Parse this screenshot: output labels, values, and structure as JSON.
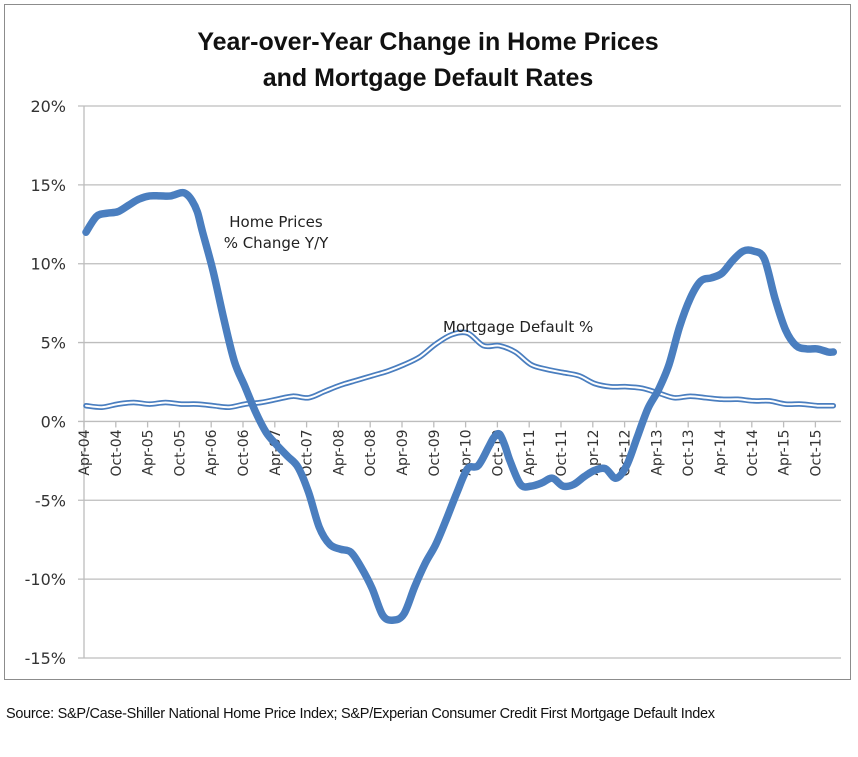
{
  "chart_data": {
    "type": "line",
    "title": [
      "Year-over-Year Change in Home Prices",
      "and Mortgage Default Rates"
    ],
    "xlabel": "",
    "ylabel": "",
    "ylim": [
      -15,
      20
    ],
    "ytick_values": [
      20,
      15,
      10,
      5,
      0,
      -5,
      -10,
      -15
    ],
    "ytick_labels": [
      "20%",
      "15%",
      "10%",
      "5%",
      "0%",
      "-5%",
      "-10%",
      "-15%"
    ],
    "xtick_labels": [
      "Apr-04",
      "Oct-04",
      "Apr-05",
      "Oct-05",
      "Apr-06",
      "Oct-06",
      "Apr-07",
      "Oct-07",
      "Apr-08",
      "Oct-08",
      "Apr-09",
      "Oct-09",
      "Apr-10",
      "Oct-10",
      "Apr-11",
      "Oct-11",
      "Apr-12",
      "Oct-12",
      "Apr-13",
      "Oct-13",
      "Apr-14",
      "Oct-14",
      "Apr-15",
      "Oct-15"
    ],
    "x_unit": "months since Apr-04",
    "grid": "horizontal",
    "legend": "inline annotations",
    "series": [
      {
        "name": "Home Prices % Change Y/Y",
        "label": [
          "Home Prices",
          "% Change Y/Y"
        ],
        "color": "#4a7ebf",
        "style": "thick",
        "x": [
          0,
          2,
          4,
          6,
          8,
          10,
          12,
          14,
          16,
          18,
          19,
          20,
          21,
          22,
          24,
          26,
          28,
          30,
          32,
          34,
          36,
          38,
          40,
          42,
          44,
          46,
          48,
          50,
          52,
          54,
          56,
          58,
          60,
          62,
          64,
          66,
          68,
          70,
          72,
          74,
          76,
          77,
          78,
          79,
          80,
          82,
          84,
          86,
          88,
          90,
          92,
          94,
          96,
          98,
          100,
          102,
          104,
          106,
          108,
          110,
          112,
          114,
          116,
          118,
          120,
          122,
          124,
          126,
          128,
          130,
          132,
          134,
          136,
          138,
          140,
          141
        ],
        "values": [
          12.0,
          13.0,
          13.2,
          13.3,
          13.7,
          14.1,
          14.3,
          14.3,
          14.3,
          14.5,
          14.4,
          14.0,
          13.3,
          12.0,
          9.5,
          6.5,
          3.8,
          2.2,
          0.6,
          -0.7,
          -1.5,
          -2.2,
          -2.9,
          -4.5,
          -6.7,
          -7.8,
          -8.1,
          -8.3,
          -9.3,
          -10.6,
          -12.3,
          -12.6,
          -12.2,
          -10.5,
          -9.0,
          -7.8,
          -6.2,
          -4.5,
          -3.0,
          -2.8,
          -1.6,
          -1.0,
          -0.8,
          -1.5,
          -2.5,
          -4.0,
          -4.1,
          -3.9,
          -3.6,
          -4.1,
          -4.0,
          -3.5,
          -3.1,
          -3.0,
          -3.6,
          -2.8,
          -1.0,
          0.8,
          2.0,
          3.6,
          6.0,
          7.8,
          8.9,
          9.1,
          9.4,
          10.2,
          10.8,
          10.8,
          10.3,
          7.8,
          5.8,
          4.8,
          4.6,
          4.6,
          4.4,
          4.4
        ]
      },
      {
        "name": "Mortgage Default %",
        "label": [
          "Mortgage Default %"
        ],
        "color": "#4a7ebf",
        "style": "double",
        "x": [
          0,
          3,
          6,
          9,
          12,
          15,
          18,
          21,
          24,
          27,
          30,
          33,
          36,
          39,
          42,
          45,
          48,
          51,
          54,
          57,
          60,
          63,
          66,
          69,
          72,
          75,
          78,
          81,
          84,
          87,
          90,
          93,
          96,
          99,
          102,
          105,
          108,
          111,
          114,
          117,
          120,
          123,
          126,
          129,
          132,
          135,
          138,
          141
        ],
        "values": [
          1.0,
          0.9,
          1.1,
          1.2,
          1.1,
          1.2,
          1.1,
          1.1,
          1.0,
          0.9,
          1.1,
          1.2,
          1.4,
          1.6,
          1.5,
          1.9,
          2.3,
          2.6,
          2.9,
          3.2,
          3.6,
          4.1,
          4.9,
          5.5,
          5.6,
          4.8,
          4.8,
          4.4,
          3.6,
          3.3,
          3.1,
          2.9,
          2.4,
          2.2,
          2.2,
          2.1,
          1.8,
          1.5,
          1.6,
          1.5,
          1.4,
          1.4,
          1.3,
          1.3,
          1.1,
          1.1,
          1.0,
          1.0
        ]
      }
    ]
  },
  "source_text": "Source:  S&P/Case-Shiller National Home Price Index; S&P/Experian Consumer Credit First Mortgage Default Index"
}
